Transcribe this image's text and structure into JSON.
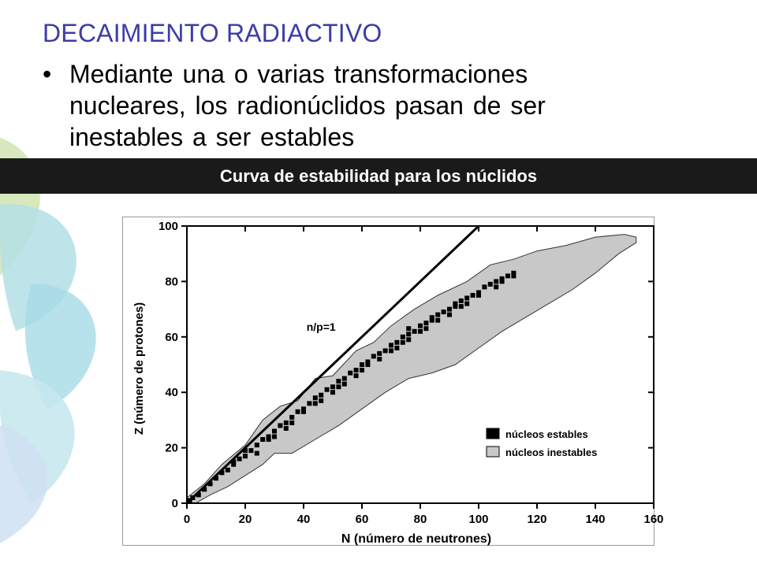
{
  "slide": {
    "title": "DECAIMIENTO RADIACTIVO",
    "bullet": "Mediante una o varias transformaciones nucleares, los radionúclidos pasan de ser inestables a ser estables",
    "bullet_symbol": "•",
    "band_title": "Curva de estabilidad para los núclidos"
  },
  "colors": {
    "title": "#3c3ca8",
    "band": "#1a1a1a",
    "unstable_fill": "#c8c8c8",
    "stable_fill": "#000000",
    "decor": [
      "#cfe3b0",
      "#b8e2ea",
      "#a7d9de",
      "#cde3f0"
    ]
  },
  "chart_data": {
    "type": "scatter",
    "xlabel": "N (número de neutrones)",
    "ylabel": "Z (número de protones)",
    "xlim": [
      0,
      160
    ],
    "ylim": [
      0,
      100
    ],
    "xticks": [
      0,
      20,
      40,
      60,
      80,
      100,
      120,
      140,
      160
    ],
    "yticks": [
      0,
      20,
      40,
      60,
      80,
      100
    ],
    "grid": false,
    "legend_position": "bottom-right",
    "reference_line": {
      "label": "n/p=1",
      "points": [
        [
          0,
          0
        ],
        [
          100,
          100
        ]
      ]
    },
    "series": [
      {
        "name": "núcleos inestables",
        "kind": "band",
        "upper": [
          [
            0,
            2
          ],
          [
            6,
            7
          ],
          [
            12,
            14
          ],
          [
            20,
            21
          ],
          [
            26,
            30
          ],
          [
            32,
            35
          ],
          [
            38,
            37
          ],
          [
            44,
            45
          ],
          [
            50,
            46
          ],
          [
            58,
            55
          ],
          [
            64,
            58
          ],
          [
            70,
            64
          ],
          [
            78,
            70
          ],
          [
            86,
            75
          ],
          [
            96,
            80
          ],
          [
            104,
            86
          ],
          [
            112,
            88
          ],
          [
            120,
            91
          ],
          [
            130,
            93
          ],
          [
            140,
            96
          ],
          [
            150,
            97
          ],
          [
            154,
            96
          ]
        ],
        "lower": [
          [
            154,
            94
          ],
          [
            148,
            90
          ],
          [
            140,
            83
          ],
          [
            132,
            77
          ],
          [
            124,
            72
          ],
          [
            116,
            67
          ],
          [
            108,
            62
          ],
          [
            100,
            56
          ],
          [
            92,
            50
          ],
          [
            84,
            47
          ],
          [
            76,
            45
          ],
          [
            68,
            40
          ],
          [
            60,
            34
          ],
          [
            52,
            28
          ],
          [
            44,
            23
          ],
          [
            36,
            18
          ],
          [
            30,
            18
          ],
          [
            26,
            14
          ],
          [
            20,
            10
          ],
          [
            14,
            6
          ],
          [
            8,
            3
          ],
          [
            3,
            0
          ],
          [
            0,
            0
          ]
        ]
      },
      {
        "name": "núcleos estables",
        "kind": "points",
        "points": [
          [
            1,
            1
          ],
          [
            2,
            2
          ],
          [
            4,
            3
          ],
          [
            6,
            5
          ],
          [
            8,
            7
          ],
          [
            10,
            9
          ],
          [
            12,
            11
          ],
          [
            14,
            12
          ],
          [
            16,
            14
          ],
          [
            18,
            16
          ],
          [
            20,
            17
          ],
          [
            22,
            19
          ],
          [
            24,
            21
          ],
          [
            26,
            23
          ],
          [
            28,
            24
          ],
          [
            30,
            26
          ],
          [
            32,
            28
          ],
          [
            34,
            29
          ],
          [
            36,
            31
          ],
          [
            38,
            33
          ],
          [
            40,
            34
          ],
          [
            42,
            36
          ],
          [
            44,
            38
          ],
          [
            46,
            39
          ],
          [
            48,
            41
          ],
          [
            50,
            42
          ],
          [
            52,
            44
          ],
          [
            54,
            45
          ],
          [
            56,
            47
          ],
          [
            58,
            48
          ],
          [
            60,
            50
          ],
          [
            62,
            51
          ],
          [
            64,
            53
          ],
          [
            66,
            54
          ],
          [
            68,
            55
          ],
          [
            70,
            57
          ],
          [
            72,
            58
          ],
          [
            74,
            60
          ],
          [
            76,
            61
          ],
          [
            78,
            62
          ],
          [
            80,
            64
          ],
          [
            82,
            65
          ],
          [
            84,
            66
          ],
          [
            86,
            68
          ],
          [
            88,
            69
          ],
          [
            90,
            70
          ],
          [
            92,
            71
          ],
          [
            94,
            73
          ],
          [
            96,
            74
          ],
          [
            98,
            75
          ],
          [
            100,
            76
          ],
          [
            102,
            78
          ],
          [
            104,
            79
          ],
          [
            106,
            80
          ],
          [
            108,
            81
          ],
          [
            110,
            82
          ],
          [
            112,
            83
          ],
          [
            16,
            15
          ],
          [
            20,
            19
          ],
          [
            24,
            18
          ],
          [
            28,
            23
          ],
          [
            30,
            24
          ],
          [
            34,
            27
          ],
          [
            36,
            29
          ],
          [
            40,
            33
          ],
          [
            44,
            36
          ],
          [
            46,
            37
          ],
          [
            50,
            40
          ],
          [
            52,
            42
          ],
          [
            54,
            43
          ],
          [
            58,
            46
          ],
          [
            60,
            48
          ],
          [
            62,
            50
          ],
          [
            66,
            52
          ],
          [
            70,
            55
          ],
          [
            72,
            56
          ],
          [
            74,
            58
          ],
          [
            76,
            59
          ],
          [
            80,
            62
          ],
          [
            82,
            63
          ],
          [
            86,
            66
          ],
          [
            90,
            68
          ],
          [
            94,
            71
          ],
          [
            96,
            72
          ],
          [
            100,
            75
          ],
          [
            106,
            78
          ],
          [
            108,
            80
          ],
          [
            112,
            82
          ],
          [
            76,
            63
          ],
          [
            84,
            67
          ],
          [
            92,
            72
          ]
        ]
      }
    ]
  }
}
